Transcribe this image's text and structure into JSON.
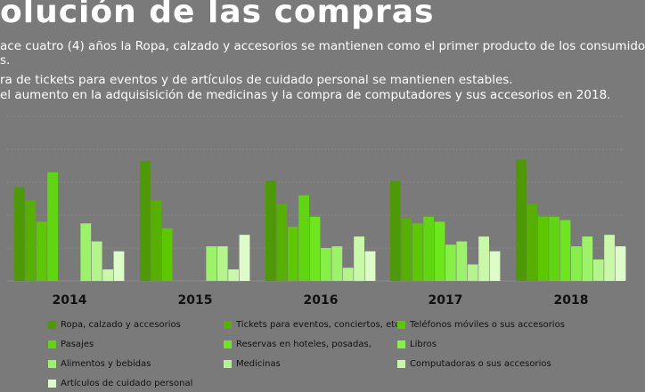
{
  "title": "olución de las compras",
  "bullets": [
    "ace cuatro (4) años la Ropa, calzado y accesorios se mantienen como el primer producto de los consumido",
    "s.",
    "ra de tickets para eventos y de artículos de cuidado personal se mantienen estables.",
    "el aumento en la  adquisisición de medicinas y la compra de computadores y sus accesorios en 2018."
  ],
  "chart_data": {
    "type": "bar",
    "categories": [
      "2014",
      "2015",
      "2016",
      "2017",
      "2018"
    ],
    "ylim": [
      0,
      100
    ],
    "grid": true,
    "legend_position": "bottom",
    "series": [
      {
        "name": "Ropa, calzado y accesorios",
        "color": "#4e9a06",
        "values": [
          57,
          73,
          61,
          61,
          74
        ]
      },
      {
        "name": "Tickets para eventos, conciertos, etc.",
        "color": "#55b000",
        "values": [
          49,
          49,
          47,
          38,
          47
        ]
      },
      {
        "name": "Teléfonos móviles o sus accesorios",
        "color": "#5cc800",
        "values": [
          36,
          32,
          33,
          35,
          39
        ]
      },
      {
        "name": "Pasajes",
        "color": "#60d610",
        "values": [
          66,
          0,
          52,
          39,
          39
        ]
      },
      {
        "name": "Reservas en hoteles, posadas,",
        "color": "#6ee61e",
        "values": [
          0,
          0,
          39,
          36,
          37
        ]
      },
      {
        "name": "Libros",
        "color": "#86ef48",
        "values": [
          0,
          0,
          20,
          22,
          21
        ]
      },
      {
        "name": "Alimentos y bebidas",
        "color": "#9cf268",
        "values": [
          35,
          21,
          21,
          24,
          27
        ]
      },
      {
        "name": "Medicinas",
        "color": "#b4f48c",
        "values": [
          24,
          21,
          8,
          10,
          13
        ]
      },
      {
        "name": "Computadoras o sus accesorios",
        "color": "#c8f8a8",
        "values": [
          7,
          7,
          27,
          27,
          28
        ]
      },
      {
        "name": "Artículos de cuidado personal",
        "color": "#ddfcc8",
        "values": [
          18,
          28,
          18,
          18,
          21
        ]
      }
    ],
    "chart_series_order": [
      [
        0,
        1,
        2,
        3,
        null,
        null,
        6,
        7,
        8,
        9
      ],
      [
        0,
        1,
        2,
        null,
        null,
        null,
        6,
        7,
        8,
        9
      ],
      [
        0,
        1,
        2,
        3,
        4,
        5,
        6,
        7,
        8,
        9
      ],
      [
        0,
        1,
        2,
        3,
        4,
        5,
        6,
        7,
        8,
        9
      ],
      [
        0,
        1,
        2,
        3,
        4,
        5,
        6,
        7,
        8,
        9
      ]
    ]
  }
}
